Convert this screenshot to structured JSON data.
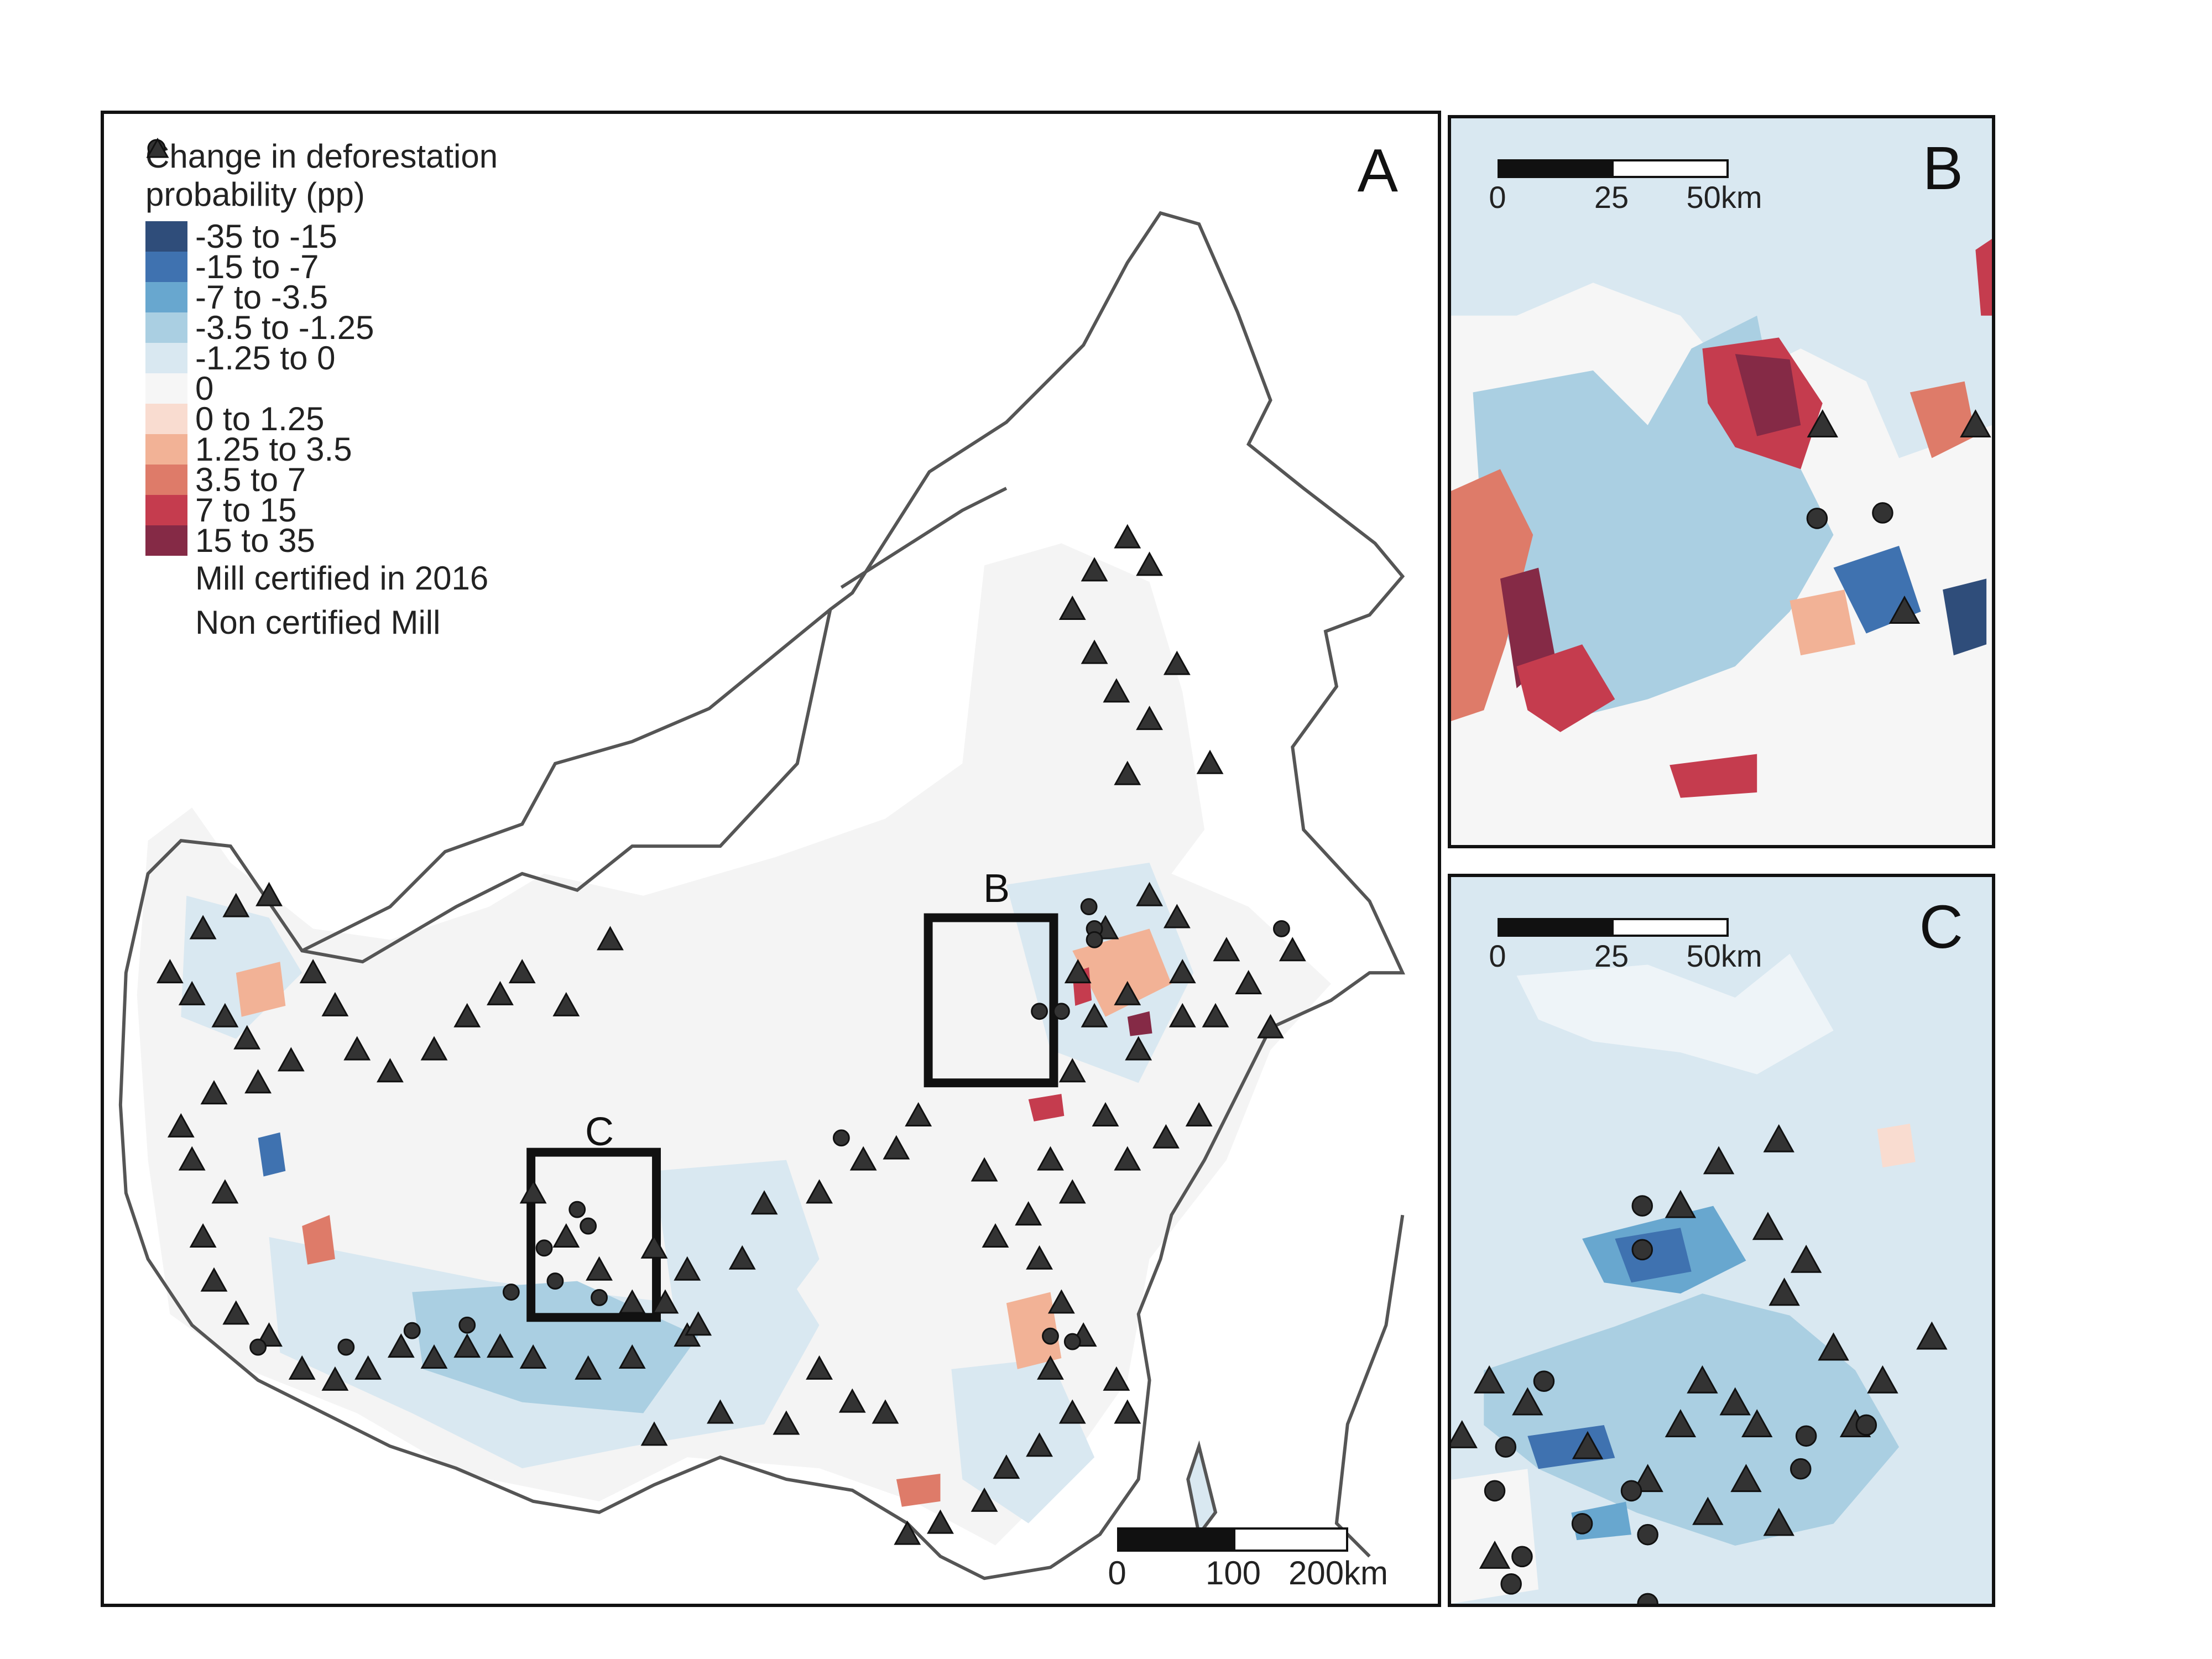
{
  "legend": {
    "title_line1": "Change in deforestation",
    "title_line2": "probability (pp)",
    "classes": [
      {
        "label": "-35 to -15",
        "color": "#2f4d7a"
      },
      {
        "label": "-15 to -7",
        "color": "#3f72b0"
      },
      {
        "label": "-7 to -3.5",
        "color": "#68a7cf"
      },
      {
        "label": "-3.5 to -1.25",
        "color": "#aacfe2"
      },
      {
        "label": "-1.25 to 0",
        "color": "#d9e8f1"
      },
      {
        "label": "0",
        "color": "#f6f6f6"
      },
      {
        "label": "0 to 1.25",
        "color": "#f9dcd0"
      },
      {
        "label": "1.25 to 3.5",
        "color": "#f2b296"
      },
      {
        "label": "3.5 to 7",
        "color": "#de7b69"
      },
      {
        "label": "7 to 15",
        "color": "#c53c4e"
      },
      {
        "label": "15 to 35",
        "color": "#852a46"
      }
    ],
    "certified_label": "Mill certified in 2016",
    "non_certified_label": "Non certified Mill"
  },
  "panels": {
    "a": {
      "letter": "A",
      "inset_b_label": "B",
      "inset_c_label": "C"
    },
    "b": {
      "letter": "B"
    },
    "c": {
      "letter": "C"
    }
  },
  "scalebars": {
    "a": {
      "ticks": [
        "0",
        "100",
        "200km"
      ]
    },
    "b": {
      "ticks": [
        "0",
        "25",
        "50km"
      ]
    },
    "c": {
      "ticks": [
        "0",
        "25",
        "50km"
      ]
    }
  },
  "colors": {
    "outline": "#555555",
    "mill_marker": "#333333",
    "inset_frame": "#111111"
  }
}
